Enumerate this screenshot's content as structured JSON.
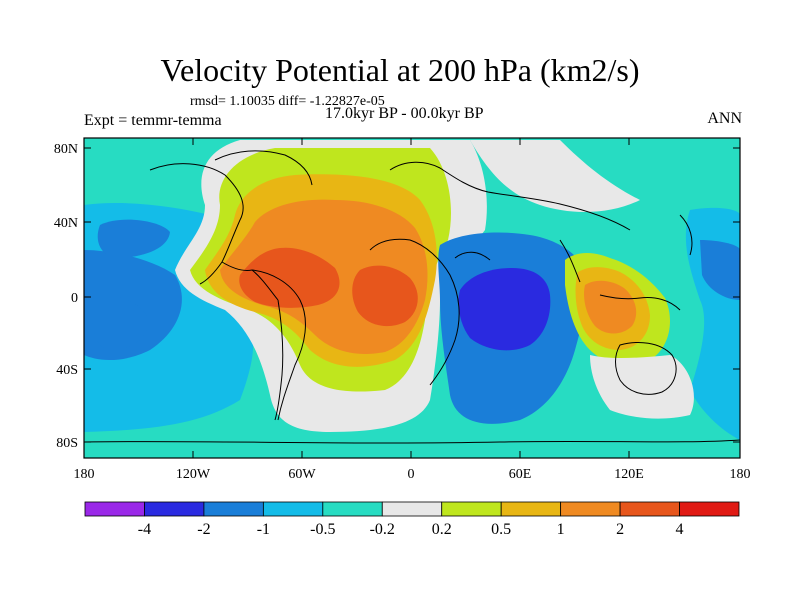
{
  "title": "Velocity Potential at 200 hPa (km2/s)",
  "stats": "rmsd= 1.10035 diff= -1.22827e-05",
  "period": "17.0kyr BP - 00.0kyr BP",
  "experiment": "Expt = temmr-temma",
  "season": "ANN",
  "lat_ticks": [
    "80N",
    "40N",
    "0",
    "40S",
    "80S"
  ],
  "lon_ticks": [
    "180",
    "120W",
    "60W",
    "0",
    "60E",
    "120E",
    "180"
  ],
  "colorbar": {
    "levels": [
      "-4",
      "-2",
      "-1",
      "-0.5",
      "-0.2",
      "0.2",
      "0.5",
      "1",
      "2",
      "4"
    ],
    "colors": [
      "#9a28e8",
      "#2a2ae0",
      "#1a7ed8",
      "#14bce8",
      "#27dcc2",
      "#e8e8e8",
      "#bfe61e",
      "#e8b614",
      "#ef8a22",
      "#e7561c",
      "#e01a14"
    ]
  }
}
